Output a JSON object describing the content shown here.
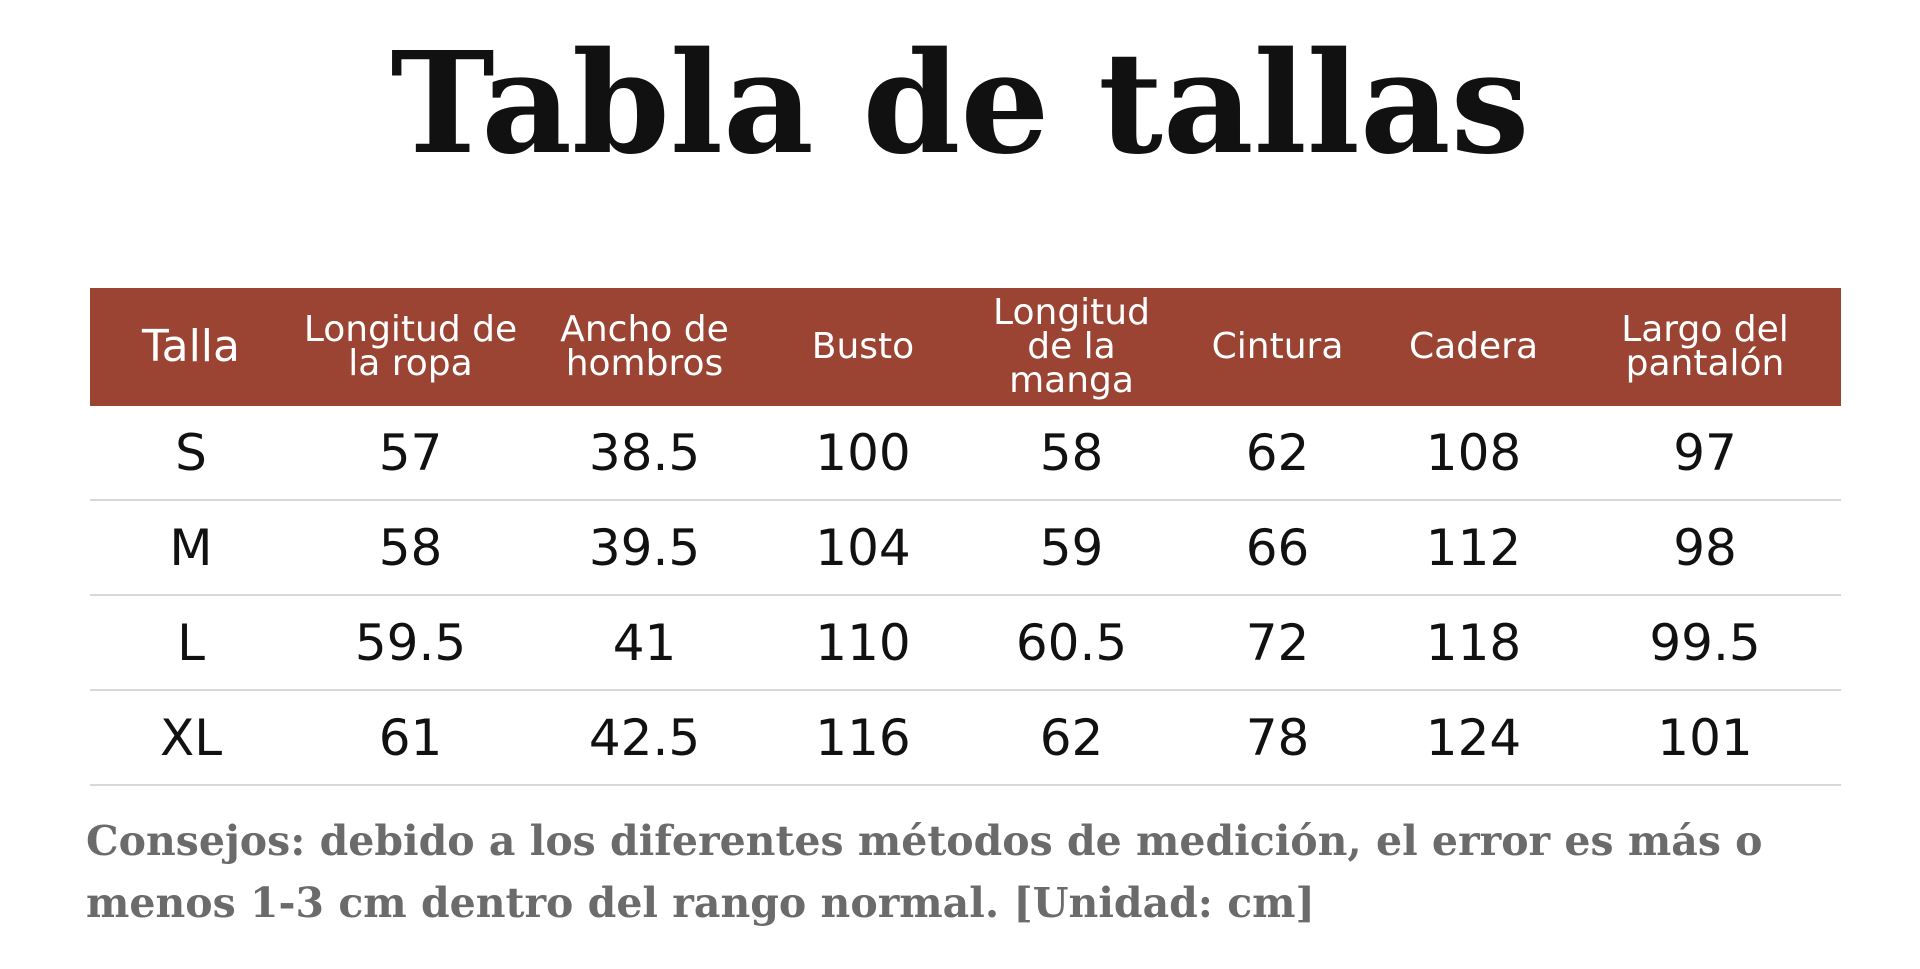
{
  "title": "Tabla de tallas",
  "table": {
    "header": [
      "Talla",
      "Longitud de la ropa",
      "Ancho de hombros",
      "Busto",
      "Longitud de la manga",
      "Cintura",
      "Cadera",
      "Largo del pantalón"
    ],
    "rows": [
      [
        "S",
        57,
        38.5,
        100,
        58,
        62,
        108,
        97
      ],
      [
        "M",
        58,
        39.5,
        104,
        59,
        66,
        112,
        98
      ],
      [
        "L",
        59.5,
        41,
        110,
        60.5,
        72,
        118,
        99.5
      ],
      [
        "XL",
        61,
        42.5,
        116,
        62,
        78,
        124,
        101
      ]
    ]
  },
  "note": "Consejos: debido a los diferentes métodos de medición, el error es más o menos 1-3 cm dentro del rango normal. [Unidad: cm]"
}
